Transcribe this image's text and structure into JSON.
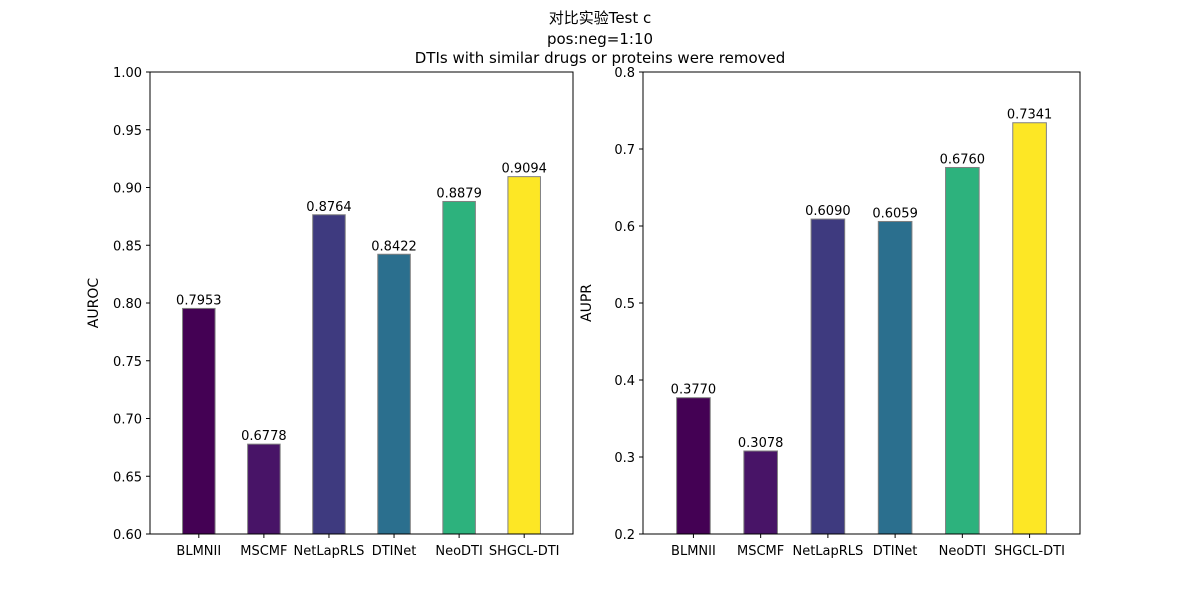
{
  "figure_title": {
    "line1": "对比实验Test c",
    "line2": "pos:neg=1:10",
    "line3": "DTIs with similar drugs or proteins were removed"
  },
  "chart_data": [
    {
      "type": "bar",
      "title": "",
      "xlabel": "",
      "ylabel": "AUROC",
      "ylim": [
        0.6,
        1.0
      ],
      "yticks": [
        0.6,
        0.65,
        0.7,
        0.75,
        0.8,
        0.85,
        0.9,
        0.95,
        1.0
      ],
      "ytick_labels": [
        "0.60",
        "0.65",
        "0.70",
        "0.75",
        "0.80",
        "0.85",
        "0.90",
        "0.95",
        "1.00"
      ],
      "categories": [
        "BLMNII",
        "MSCMF",
        "NetLapRLS",
        "DTINet",
        "NeoDTI",
        "SHGCL-DTI"
      ],
      "values": [
        0.7953,
        0.6778,
        0.8764,
        0.8422,
        0.8879,
        0.9094
      ],
      "value_labels": [
        "0.7953",
        "0.6778",
        "0.8764",
        "0.8422",
        "0.8879",
        "0.9094"
      ],
      "colors": [
        "#440154",
        "#481467",
        "#3e3a7f",
        "#2b6f8e",
        "#2db27d",
        "#fde725"
      ],
      "grid": false
    },
    {
      "type": "bar",
      "title": "",
      "xlabel": "",
      "ylabel": "AUPR",
      "ylim": [
        0.2,
        0.8
      ],
      "yticks": [
        0.2,
        0.3,
        0.4,
        0.5,
        0.6,
        0.7,
        0.8
      ],
      "ytick_labels": [
        "0.2",
        "0.3",
        "0.4",
        "0.5",
        "0.6",
        "0.7",
        "0.8"
      ],
      "categories": [
        "BLMNII",
        "MSCMF",
        "NetLapRLS",
        "DTINet",
        "NeoDTI",
        "SHGCL-DTI"
      ],
      "values": [
        0.377,
        0.3078,
        0.609,
        0.6059,
        0.676,
        0.7341
      ],
      "value_labels": [
        "0.3770",
        "0.3078",
        "0.6090",
        "0.6059",
        "0.6760",
        "0.7341"
      ],
      "colors": [
        "#440154",
        "#481467",
        "#3e3a7f",
        "#2b6f8e",
        "#2db27d",
        "#fde725"
      ],
      "grid": false
    }
  ]
}
